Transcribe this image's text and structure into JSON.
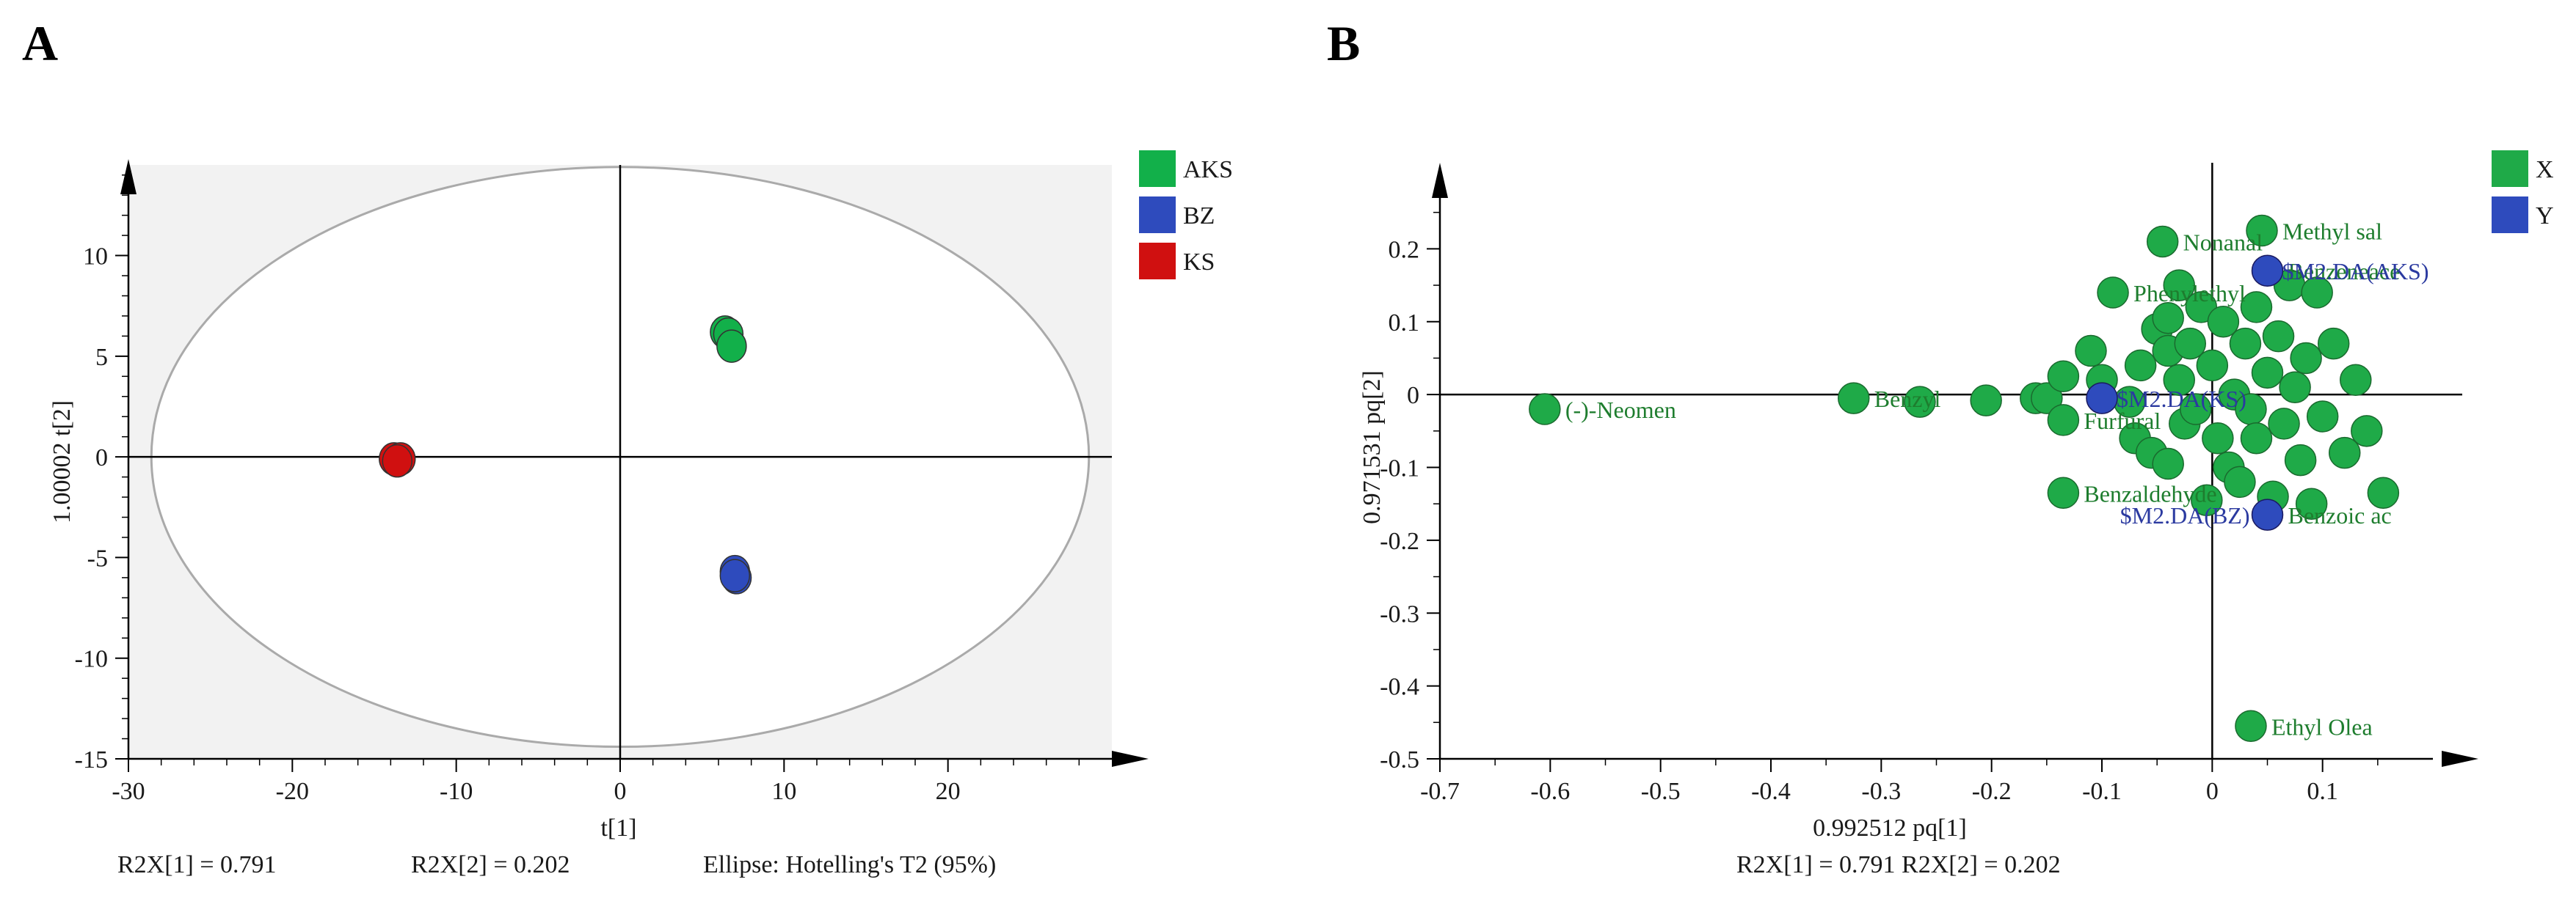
{
  "figure": {
    "label_a": "A",
    "label_b": "B"
  },
  "colors": {
    "aks": "#12b04a",
    "bz": "#2e4bbd",
    "ks": "#d01010",
    "x_var": "#1faa48",
    "y_var": "#2e4bbd",
    "plot_bg": "#f2f2f2",
    "ellipse": "#aaaaaa",
    "var_text": "#1e7d2e",
    "y_text": "#2b3aa0"
  },
  "chart_data": [
    {
      "id": "A",
      "type": "scatter",
      "title": "",
      "xlabel": "t[1]",
      "ylabel": "1.00002  t[2]",
      "xlim": [
        -30,
        30
      ],
      "ylim": [
        -15,
        14.5
      ],
      "xticks": [
        -30,
        -20,
        -10,
        0,
        10,
        20
      ],
      "yticks": [
        -15,
        -10,
        -5,
        0,
        5,
        10
      ],
      "ellipse": {
        "cx": 0,
        "cy": 0,
        "rx": 28.6,
        "ry": 14.4,
        "label": "Ellipse: Hotelling's T2 (95%)"
      },
      "legend": [
        {
          "name": "AKS",
          "color_key": "aks"
        },
        {
          "name": "BZ",
          "color_key": "bz"
        },
        {
          "name": "KS",
          "color_key": "ks"
        }
      ],
      "series": [
        {
          "name": "AKS",
          "color_key": "aks",
          "points": [
            [
              6.4,
              6.2
            ],
            [
              6.6,
              6.1
            ],
            [
              6.8,
              5.5
            ]
          ]
        },
        {
          "name": "BZ",
          "color_key": "bz",
          "points": [
            [
              7.0,
              -5.7
            ],
            [
              7.1,
              -6.0
            ],
            [
              7.0,
              -5.9
            ]
          ]
        },
        {
          "name": "KS",
          "color_key": "ks",
          "points": [
            [
              -13.8,
              -0.1
            ],
            [
              -13.4,
              -0.1
            ],
            [
              -13.6,
              -0.2
            ]
          ]
        }
      ],
      "footer": {
        "r2x1": "R2X[1] = 0.791",
        "r2x2": "R2X[2] = 0.202",
        "ellipse": "Ellipse: Hotelling's T2 (95%)"
      }
    },
    {
      "id": "B",
      "type": "scatter",
      "title": "",
      "xlabel": "0.992512  pq[1]",
      "ylabel": "0.971531  pq[2]",
      "xlim": [
        -0.7,
        0.2
      ],
      "ylim": [
        -0.5,
        0.3
      ],
      "xticks": [
        -0.7,
        -0.6,
        -0.5,
        -0.4,
        -0.3,
        -0.2,
        -0.1,
        0,
        0.1
      ],
      "yticks": [
        -0.5,
        -0.4,
        -0.3,
        -0.2,
        -0.1,
        0,
        0.1,
        0.2
      ],
      "legend": [
        {
          "name": "X",
          "color_key": "x_var"
        },
        {
          "name": "Y",
          "color_key": "y_var"
        }
      ],
      "x_points": [
        [
          -0.605,
          -0.02
        ],
        [
          -0.325,
          -0.005
        ],
        [
          -0.265,
          -0.01
        ],
        [
          -0.205,
          -0.008
        ],
        [
          -0.16,
          -0.005
        ],
        [
          -0.15,
          -0.005
        ],
        [
          -0.135,
          0.025
        ],
        [
          -0.135,
          -0.035
        ],
        [
          -0.135,
          -0.135
        ],
        [
          -0.11,
          0.06
        ],
        [
          -0.1,
          0.02
        ],
        [
          -0.09,
          0.14
        ],
        [
          -0.075,
          -0.01
        ],
        [
          -0.07,
          -0.06
        ],
        [
          -0.065,
          0.04
        ],
        [
          -0.055,
          -0.08
        ],
        [
          -0.05,
          0.09
        ],
        [
          -0.045,
          0.21
        ],
        [
          -0.04,
          0.105
        ],
        [
          -0.04,
          0.06
        ],
        [
          -0.04,
          -0.095
        ],
        [
          -0.03,
          0.15
        ],
        [
          -0.03,
          0.02
        ],
        [
          -0.025,
          -0.04
        ],
        [
          -0.02,
          0.07
        ],
        [
          -0.015,
          -0.02
        ],
        [
          -0.01,
          0.12
        ],
        [
          -0.005,
          -0.145
        ],
        [
          0.0,
          0.04
        ],
        [
          0.005,
          -0.06
        ],
        [
          0.01,
          0.1
        ],
        [
          0.015,
          -0.1
        ],
        [
          0.02,
          0.0
        ],
        [
          0.025,
          -0.12
        ],
        [
          0.03,
          0.07
        ],
        [
          0.035,
          -0.02
        ],
        [
          0.04,
          0.12
        ],
        [
          0.04,
          -0.06
        ],
        [
          0.045,
          0.225
        ],
        [
          0.05,
          0.03
        ],
        [
          0.055,
          -0.14
        ],
        [
          0.06,
          0.08
        ],
        [
          0.065,
          -0.04
        ],
        [
          0.07,
          0.15
        ],
        [
          0.075,
          0.01
        ],
        [
          0.08,
          -0.09
        ],
        [
          0.085,
          0.05
        ],
        [
          0.09,
          -0.15
        ],
        [
          0.095,
          0.14
        ],
        [
          0.1,
          -0.03
        ],
        [
          0.11,
          0.07
        ],
        [
          0.12,
          -0.08
        ],
        [
          0.13,
          0.02
        ],
        [
          0.14,
          -0.05
        ],
        [
          0.155,
          -0.135
        ],
        [
          0.035,
          -0.455
        ]
      ],
      "y_points": [
        [
          -0.1,
          -0.005
        ],
        [
          0.05,
          0.17
        ],
        [
          0.05,
          -0.165
        ]
      ],
      "labels": [
        {
          "text": "(-)-Neomen",
          "x": -0.605,
          "y": -0.02,
          "kind": "x"
        },
        {
          "text": "Benzyl",
          "x": -0.325,
          "y": -0.005,
          "kind": "x"
        },
        {
          "text": "Methyl sal",
          "x": 0.045,
          "y": 0.225,
          "kind": "x"
        },
        {
          "text": "Nonanal",
          "x": -0.045,
          "y": 0.21,
          "kind": "x"
        },
        {
          "text": "Benzeneace",
          "x": 0.05,
          "y": 0.17,
          "kind": "x"
        },
        {
          "text": "Phenylethyl",
          "x": -0.09,
          "y": 0.14,
          "kind": "x"
        },
        {
          "text": "Benzaldehyde",
          "x": -0.135,
          "y": -0.135,
          "kind": "x"
        },
        {
          "text": "Benzoic ac",
          "x": 0.05,
          "y": -0.165,
          "kind": "x"
        },
        {
          "text": "Ethyl Olea",
          "x": 0.035,
          "y": -0.455,
          "kind": "x"
        },
        {
          "text": "Furfural",
          "x": -0.135,
          "y": -0.035,
          "kind": "x"
        },
        {
          "text": "$M2.DA(AKS)",
          "x": 0.05,
          "y": 0.17,
          "kind": "y"
        },
        {
          "text": "$M2.DA(KS)",
          "x": -0.1,
          "y": -0.005,
          "kind": "y"
        },
        {
          "text": "$M2.DA(BZ)",
          "x": 0.05,
          "y": -0.165,
          "kind": "y"
        }
      ],
      "footer": {
        "r2x": "R2X[1] = 0.791 R2X[2] = 0.202"
      }
    }
  ]
}
